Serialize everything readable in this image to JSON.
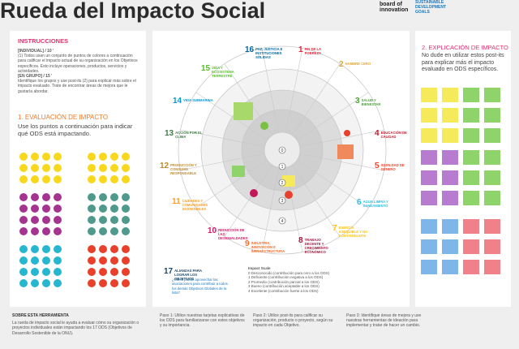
{
  "header": {
    "title": "Rueda del Impacto Social",
    "brand": "board of innovation",
    "goals_logo": "SUSTAINABLE DEVELOPMENT GOALS"
  },
  "instructions": {
    "heading": "INSTRUCCIONES",
    "lines": [
      "[INDIVIDUAL] / 10 '",
      "(1) Todos usan un conjunto de puntos de colores a continuación para calificar el impacto actual de su organización en los Objetivos específicos. Esto incluye operaciones, productos, servicios y actividades.",
      "[EN GRUPO] / 15 '",
      "Identifique los grupos y use post-its (2) para explicar más sobre el impacto evaluado. Trate de encontrar áreas de mejora que le gustaría abordar."
    ]
  },
  "evaluation": {
    "heading": "1. EVALUACIÓN DE IMPACTO",
    "text": "Use los puntos a continuación para indicar qué ODS está impactando."
  },
  "wheel": {
    "goals": [
      {
        "number": 1,
        "label": "FIN DE LA POBREZA",
        "color": "#e5243b"
      },
      {
        "number": 2,
        "label": "HAMBRE CERO",
        "color": "#dda63a"
      },
      {
        "number": 3,
        "label": "SALUD Y BIENESTAR",
        "color": "#4c9f38"
      },
      {
        "number": 4,
        "label": "EDUCACIÓN DE CALIDAD",
        "color": "#c5192d"
      },
      {
        "number": 5,
        "label": "IGUALDAD DE GÉNERO",
        "color": "#ff3a21"
      },
      {
        "number": 6,
        "label": "AGUA LIMPIA Y SANEAMIENTO",
        "color": "#26bde2"
      },
      {
        "number": 7,
        "label": "ENERGÍA ASEQUIBLE Y NO CONTAMINANTE",
        "color": "#fcc30b"
      },
      {
        "number": 8,
        "label": "TRABAJO DECENTE Y CRECIMIENTO ECONÓMICO",
        "color": "#a21942"
      },
      {
        "number": 9,
        "label": "INDUSTRIA, INNOVACIÓN E INFRAESTRUCTURA",
        "color": "#fd6925"
      },
      {
        "number": 10,
        "label": "REDUCCIÓN DE LAS DESIGUALDADES",
        "color": "#dd1367"
      },
      {
        "number": 11,
        "label": "CIUDADES Y COMUNIDADES SOSTENIBLES",
        "color": "#fd9d24"
      },
      {
        "number": 12,
        "label": "PRODUCCIÓN Y CONSUMO RESPONSABLE",
        "color": "#bf8b2e"
      },
      {
        "number": 13,
        "label": "ACCIÓN POR EL CLIMA",
        "color": "#3f7e44"
      },
      {
        "number": 14,
        "label": "VIDA SUBMARINA",
        "color": "#0a97d9"
      },
      {
        "number": 15,
        "label": "VIDA Y ECOSISTEMA TERRESTRE",
        "color": "#56c02b"
      },
      {
        "number": 16,
        "label": "PAZ, JUSTICIA E INSTITUCIONES SÓLIDAS",
        "color": "#00689d"
      },
      {
        "number": 17,
        "label": "ALIANZAS PARA LOGRAR LOS OBJETIVOS",
        "color": "#19486a"
      }
    ],
    "scale": [
      0,
      1,
      2,
      3,
      4
    ],
    "goal17_text": "¿Cómo puede aprovechar las asociaciones para contribuir a todos los demás Objetivos Globales de la lista?",
    "impact_scale": {
      "title": "Impact Scale",
      "items": [
        "0 Desconocido (contribución para cero a los ODS)",
        "1 Deficiente (contribución negativa a los ODS)",
        "2 Promedio (contribución parcial a los ODS)",
        "3 Bueno (contribución aceptable a los ODS)",
        "4 Excelente (contribución fuerte a los ODS)"
      ]
    }
  },
  "explanation": {
    "heading": "2. EXPLICACIÓN DE IMPACTO",
    "text": "No dude en utilizar estos post-its para explicar más el impacto evaluado en ODS específicos."
  },
  "footer": {
    "about_heading": "SOBRE ESTA HERRAMIENTA",
    "about_text": "La rueda de impacto social le ayuda a evaluar cómo su organización o proyectos individuales están impactando los 17 ODS (Objetivos de Desarrollo Sostenible de la ONU).",
    "steps": [
      "Paso 1: Utilice nuestras tarjetas explicativas de los ODS para familiarizarse con estos objetivos y su importancia.",
      "Paso 2: Utilice post-its para calificar su organización, producto o proyecto, según su impacto en cada Objetivo.",
      "Paso 3: Identifique áreas de mejora y use nuestras herramientas de ideación para implementar y tratar de hacer un cambio."
    ]
  }
}
